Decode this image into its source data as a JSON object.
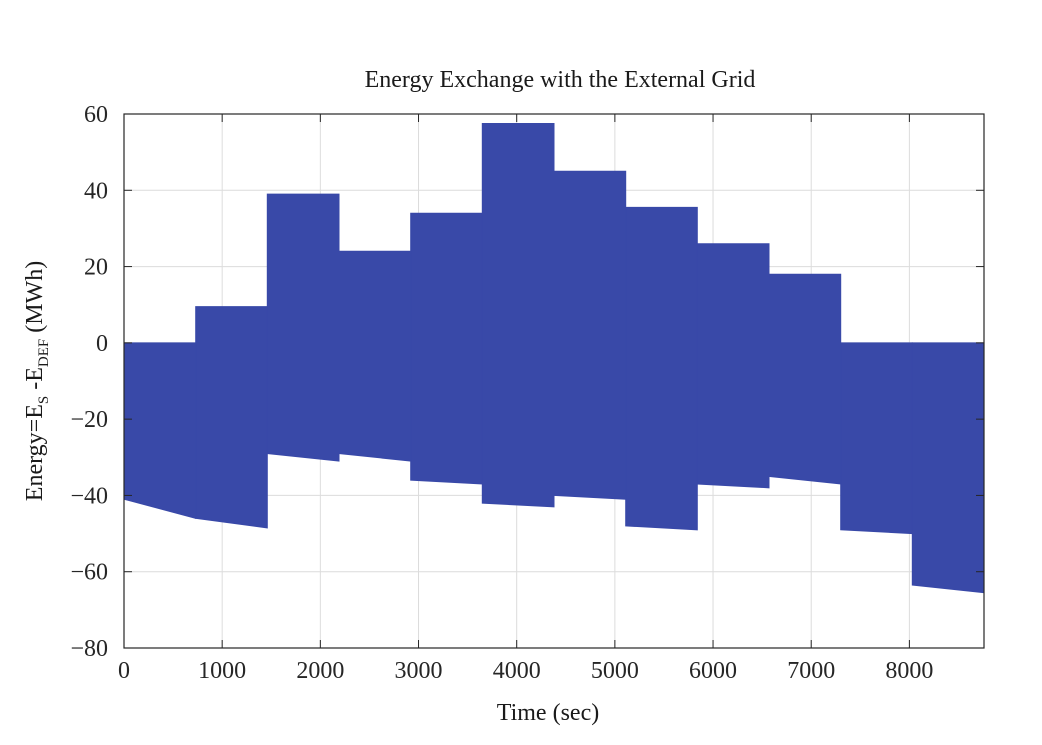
{
  "chart_data": {
    "type": "area",
    "title": "Energy Exchange with the External Grid",
    "xlabel": "Time (sec)",
    "ylabel": {
      "prefix": "Energy=E",
      "sub1": "S",
      "middle": " -E",
      "sub2": "DEF",
      "suffix": " (MWh)"
    },
    "xlim": [
      0,
      8760
    ],
    "ylim": [
      -80,
      60
    ],
    "xticks": [
      0,
      1000,
      2000,
      3000,
      4000,
      5000,
      6000,
      7000,
      8000
    ],
    "xtick_labels": [
      "0",
      "1000",
      "2000",
      "3000",
      "4000",
      "5000",
      "6000",
      "7000",
      "8000"
    ],
    "yticks": [
      60,
      40,
      20,
      0,
      -20,
      -40,
      -60,
      -80
    ],
    "ytick_labels": [
      "60",
      "40",
      "20",
      "0",
      "−20",
      "−40",
      "−60",
      "−80"
    ],
    "grid": true,
    "color": "#3949a8",
    "series": [
      {
        "segments": [
          {
            "x0": 0,
            "x1": 730,
            "top": 0,
            "bottom_start": -41,
            "bottom_end": -46
          },
          {
            "x0": 730,
            "x1": 1460,
            "top": 9.5,
            "bottom_start": -46,
            "bottom_end": -48.5
          },
          {
            "x0": 1460,
            "x1": 2190,
            "top": 39,
            "bottom_start": -29,
            "bottom_end": -31
          },
          {
            "x0": 2190,
            "x1": 2920,
            "top": 24,
            "bottom_start": -29,
            "bottom_end": -31
          },
          {
            "x0": 2920,
            "x1": 3650,
            "top": 34,
            "bottom_start": -36,
            "bottom_end": -37
          },
          {
            "x0": 3650,
            "x1": 4380,
            "top": 57.5,
            "bottom_start": -42,
            "bottom_end": -43
          },
          {
            "x0": 4380,
            "x1": 5110,
            "top": 45,
            "bottom_start": -40,
            "bottom_end": -41
          },
          {
            "x0": 5110,
            "x1": 5840,
            "top": 35.5,
            "bottom_start": -48,
            "bottom_end": -49
          },
          {
            "x0": 5840,
            "x1": 6570,
            "top": 26,
            "bottom_start": -37,
            "bottom_end": -38
          },
          {
            "x0": 6570,
            "x1": 7300,
            "top": 18,
            "bottom_start": -35,
            "bottom_end": -37
          },
          {
            "x0": 7300,
            "x1": 8030,
            "top": 0,
            "bottom_start": -49,
            "bottom_end": -50
          },
          {
            "x0": 8030,
            "x1": 8760,
            "top": 0,
            "bottom_start": -63.5,
            "bottom_end": -65.5
          }
        ]
      }
    ]
  }
}
